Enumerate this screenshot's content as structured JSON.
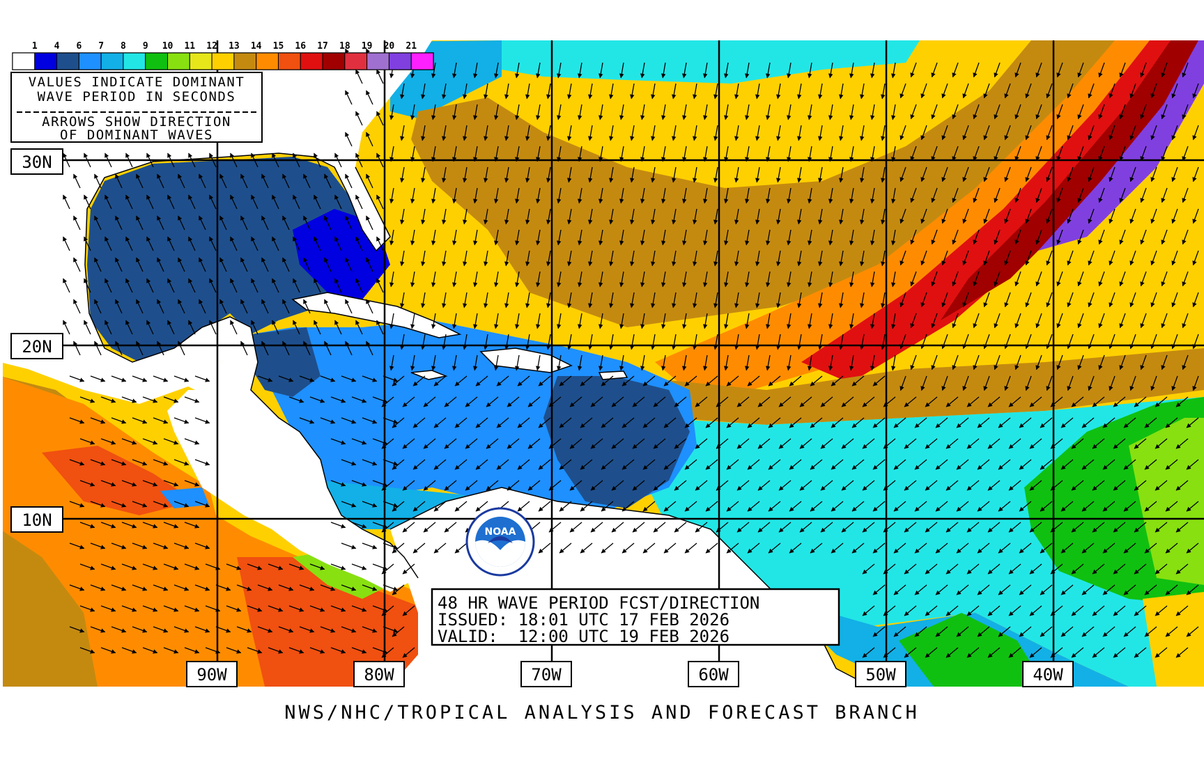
{
  "legend": {
    "scale_labels": [
      "1",
      "4",
      "6",
      "7",
      "8",
      "9",
      "10",
      "11",
      "12",
      "13",
      "14",
      "15",
      "16",
      "17",
      "18",
      "19",
      "20",
      "21"
    ],
    "colors": [
      "#ffffff",
      "#0000e0",
      "#1e4f8c",
      "#1e90ff",
      "#12b0e6",
      "#22e6e6",
      "#10c010",
      "#88e010",
      "#e6e61a",
      "#ffd000",
      "#c48a10",
      "#ff8c00",
      "#f05010",
      "#e01010",
      "#a00000",
      "#e03040",
      "#a070d0",
      "#8040e0",
      "#ff20ff"
    ]
  },
  "info_box": {
    "line1": "VALUES INDICATE DOMINANT",
    "line2": "WAVE PERIOD IN SECONDS",
    "line3": "ARROWS SHOW DIRECTION",
    "line4": "OF DOMINANT WAVES"
  },
  "lat_labels": [
    "30N",
    "20N",
    "10N"
  ],
  "lon_labels": [
    "90W",
    "80W",
    "70W",
    "60W",
    "50W",
    "40W"
  ],
  "forecast_box": {
    "title": "48 HR WAVE PERIOD FCST/DIRECTION",
    "issued": "ISSUED: 18:01 UTC 17 FEB 2026",
    "valid": "VALID:  12:00 UTC 19 FEB 2026"
  },
  "logo": {
    "text": "NOAA"
  },
  "footer": "NWS/NHC/TROPICAL ANALYSIS AND FORECAST BRANCH",
  "map_colors": {
    "land": "#ffffff",
    "gulf": "#1e4f8c",
    "caribbean": "#1e90ff",
    "open_atlantic": "#ffd000",
    "swell_band_orange": "#ff8c00",
    "swell_band_red": "#e01010",
    "swell_band_darkred": "#a00000",
    "swell_band_purple": "#8040e0",
    "brown": "#c48a10",
    "cyan": "#22e6e6",
    "green": "#10c010",
    "pacific_orange": "#ff8c00",
    "pacific_red": "#f05010"
  }
}
